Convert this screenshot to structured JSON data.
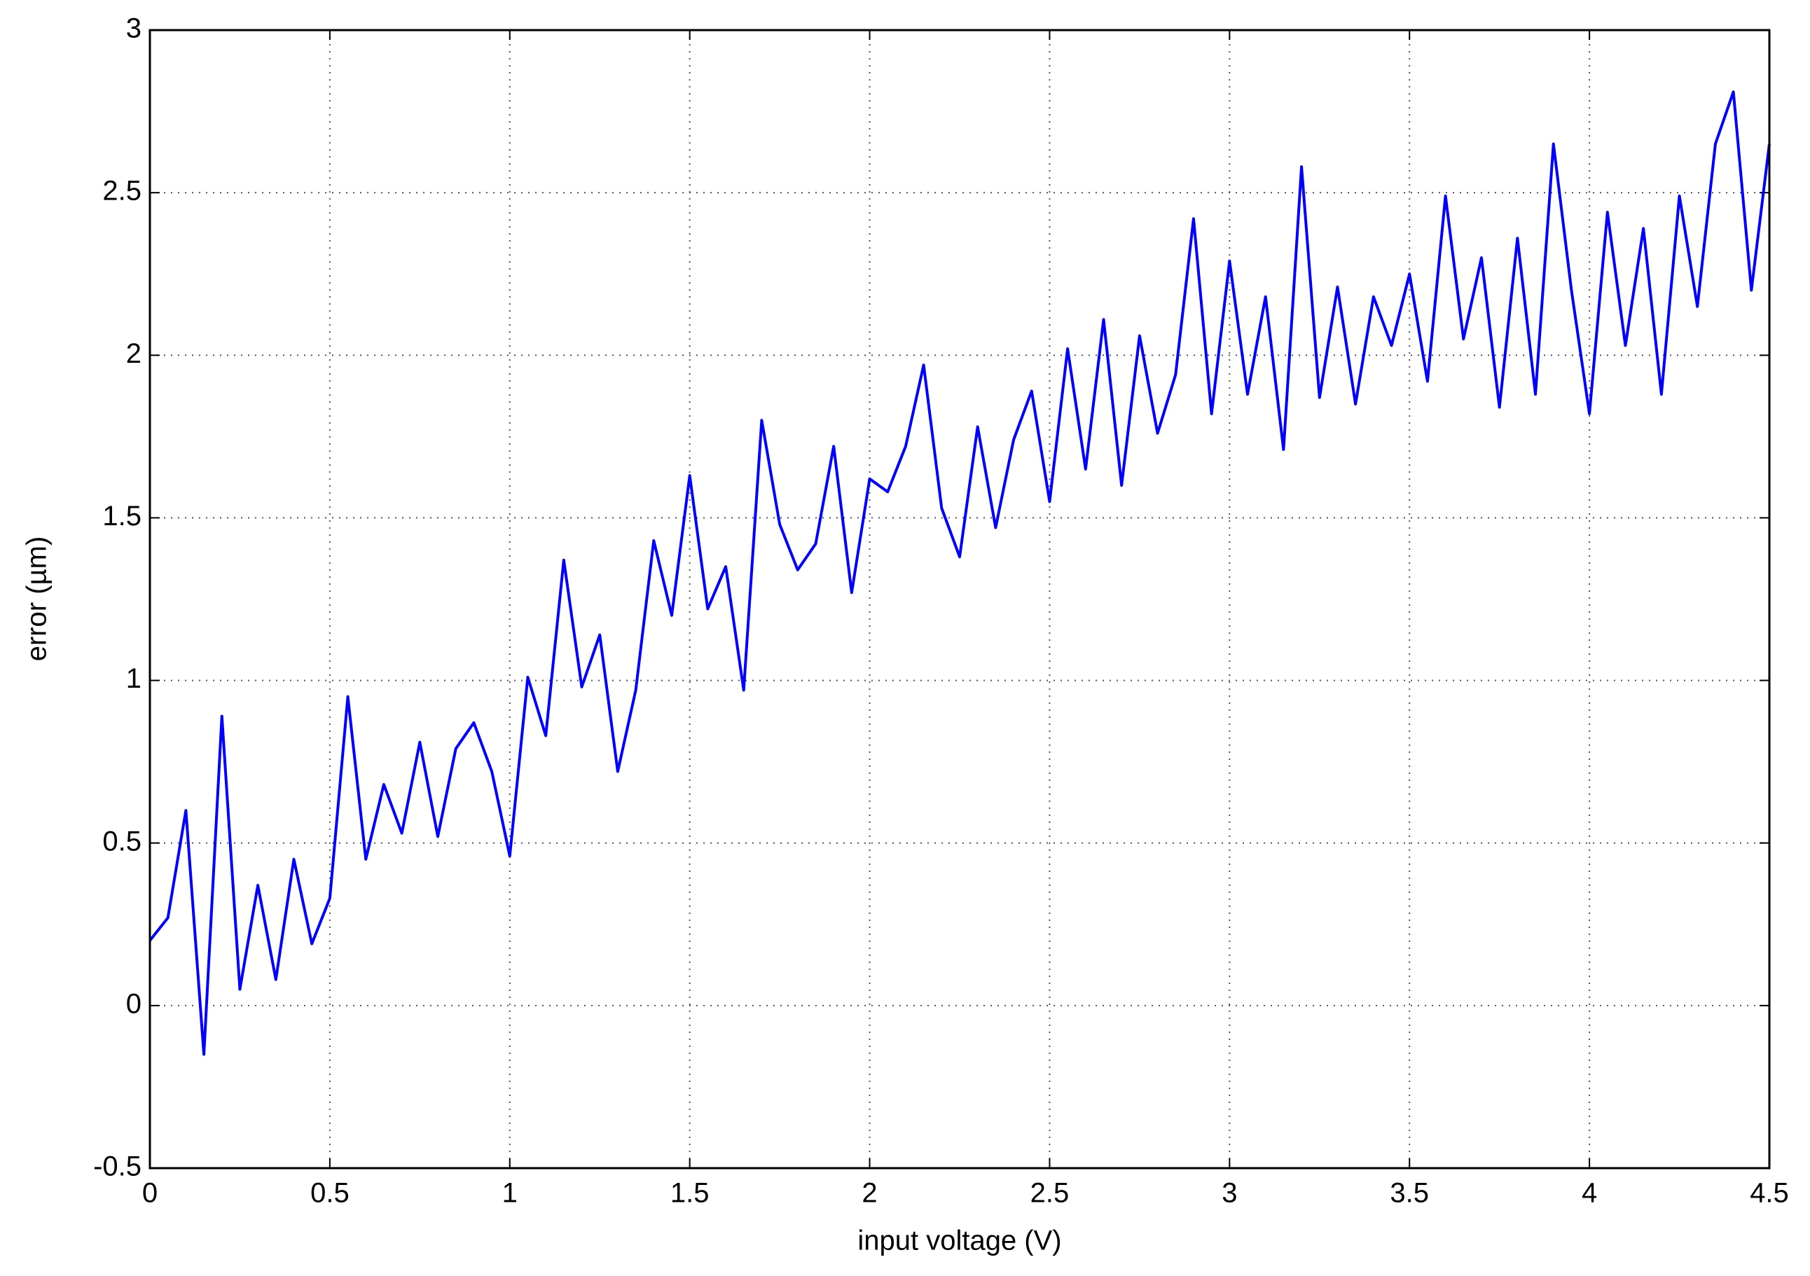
{
  "chart_data": {
    "type": "line",
    "xlabel": "input voltage (V)",
    "ylabel": "error (µm)",
    "x": [
      0,
      0.05,
      0.1,
      0.15,
      0.2,
      0.25,
      0.3,
      0.35,
      0.4,
      0.45,
      0.5,
      0.55,
      0.6,
      0.65,
      0.7,
      0.75,
      0.8,
      0.85,
      0.9,
      0.95,
      1,
      1.05,
      1.1,
      1.15,
      1.2,
      1.25,
      1.3,
      1.35,
      1.4,
      1.45,
      1.5,
      1.55,
      1.6,
      1.65,
      1.7,
      1.75,
      1.8,
      1.85,
      1.9,
      1.95,
      2,
      2.05,
      2.1,
      2.15,
      2.2,
      2.25,
      2.3,
      2.35,
      2.4,
      2.45,
      2.5,
      2.55,
      2.6,
      2.65,
      2.7,
      2.75,
      2.8,
      2.85,
      2.9,
      2.95,
      3,
      3.05,
      3.1,
      3.15,
      3.2,
      3.25,
      3.3,
      3.35,
      3.4,
      3.45,
      3.5,
      3.55,
      3.6,
      3.65,
      3.7,
      3.75,
      3.8,
      3.85,
      3.9,
      3.95,
      4,
      4.05,
      4.1,
      4.15,
      4.2,
      4.25,
      4.3,
      4.35,
      4.4,
      4.45,
      4.5
    ],
    "series": [
      {
        "color": "#0000ff",
        "values": [
          0.2,
          0.27,
          0.6,
          -0.15,
          0.89,
          0.05,
          0.37,
          0.08,
          0.45,
          0.19,
          0.33,
          0.95,
          0.45,
          0.68,
          0.53,
          0.81,
          0.52,
          0.79,
          0.87,
          0.72,
          0.46,
          1.01,
          0.83,
          1.37,
          0.98,
          1.14,
          0.72,
          0.97,
          1.43,
          1.2,
          1.63,
          1.22,
          1.35,
          0.97,
          1.8,
          1.48,
          1.34,
          1.42,
          1.72,
          1.27,
          1.62,
          1.58,
          1.72,
          1.97,
          1.53,
          1.38,
          1.78,
          1.47,
          1.74,
          1.89,
          1.55,
          2.02,
          1.65,
          2.11,
          1.6,
          2.06,
          1.76,
          1.94,
          2.42,
          1.82,
          2.29,
          1.88,
          2.18,
          1.71,
          2.58,
          1.87,
          2.21,
          1.85,
          2.18,
          2.03,
          2.25,
          1.92,
          2.49,
          2.05,
          2.3,
          1.84,
          2.36,
          1.88,
          2.65,
          2.2,
          1.82,
          2.44,
          2.03,
          2.39,
          1.88,
          2.49,
          2.15,
          2.65,
          2.81,
          2.2,
          2.65
        ]
      }
    ],
    "xlim": [
      0,
      4.5
    ],
    "xticks": [
      0,
      0.5,
      1,
      1.5,
      2,
      2.5,
      3,
      3.5,
      4,
      4.5
    ],
    "ylim": [
      -0.5,
      3
    ],
    "yticks": [
      -0.5,
      0,
      0.5,
      1,
      1.5,
      2,
      2.5,
      3
    ],
    "grid": true
  }
}
